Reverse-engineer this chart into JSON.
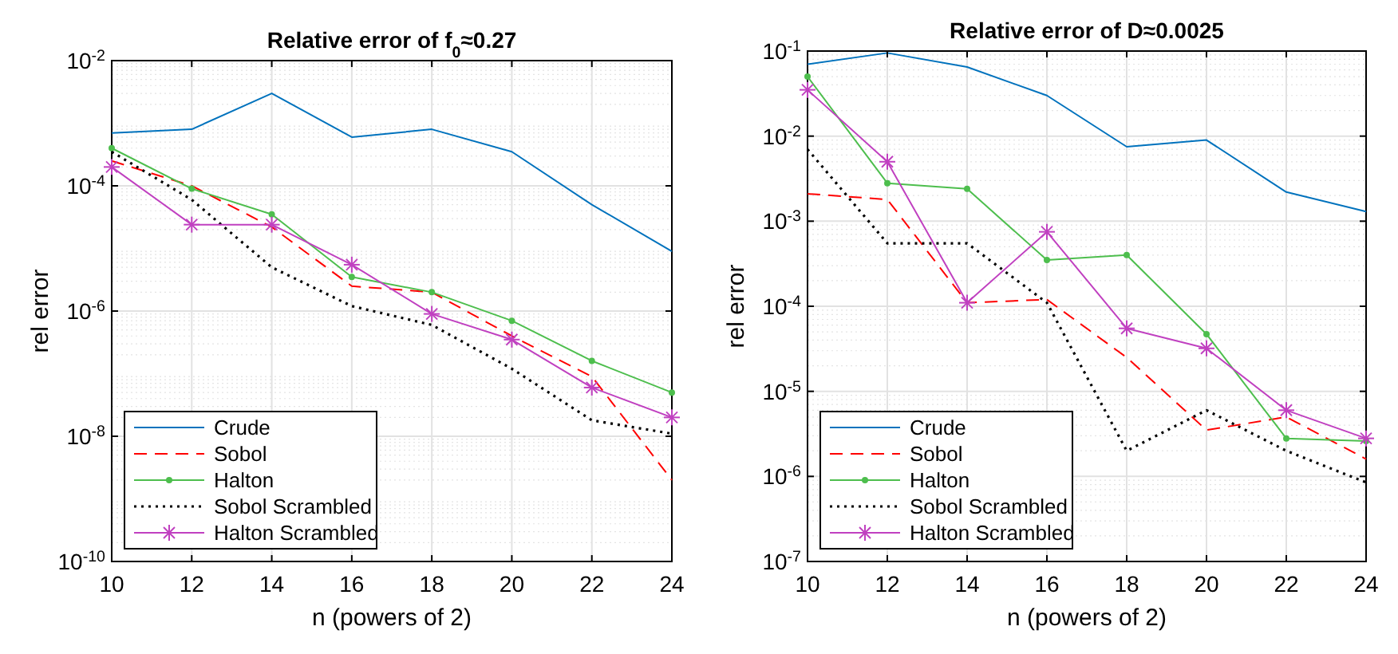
{
  "chart_data": [
    {
      "type": "line",
      "title": "Relative error of f$_{0}$≈0.27",
      "xlabel": "n (powers of 2)",
      "ylabel": "rel error",
      "log": "y",
      "grid": true,
      "legend": "bottom left",
      "x": [
        10,
        12,
        14,
        16,
        18,
        20,
        22,
        24
      ],
      "xlim": [
        10,
        24
      ],
      "xticks": [
        10,
        12,
        14,
        16,
        18,
        20,
        22,
        24
      ],
      "ylim": [
        1e-10,
        0.01
      ],
      "yticks": [
        {
          "value": 1e-10,
          "label": "10$^{-10}$"
        },
        {
          "value": 1e-08,
          "label": "10$^{-8}$"
        },
        {
          "value": 1e-06,
          "label": "10$^{-6}$"
        },
        {
          "value": 0.0001,
          "label": "10$^{-4}$"
        },
        {
          "value": 0.01,
          "label": "10$^{-2}$"
        }
      ],
      "series": [
        {
          "name": "Crude",
          "color": "#0072bd",
          "line_style": "solid",
          "marker": "none",
          "values": [
            0.0007,
            0.0008,
            0.003,
            0.0006,
            0.0008,
            0.00035,
            5e-05,
            9e-06
          ]
        },
        {
          "name": "Sobol",
          "color": "#ff0000",
          "line_style": "dashed",
          "marker": "none",
          "values": [
            0.00025,
            0.0001,
            2.2e-05,
            2.5e-06,
            2e-06,
            4e-07,
            9e-08,
            2e-09
          ]
        },
        {
          "name": "Halton",
          "color": "#4dbe4d",
          "line_style": "solid",
          "marker": "circle",
          "values": [
            0.0004,
            9e-05,
            3.5e-05,
            3.5e-06,
            2e-06,
            7e-07,
            1.6e-07,
            5e-08
          ]
        },
        {
          "name": "Sobol Scrambled",
          "color": "#000000",
          "line_style": "dotted",
          "marker": "none",
          "values": [
            0.00035,
            6e-05,
            5e-06,
            1.2e-06,
            6e-07,
            1.2e-07,
            1.8e-08,
            1.1e-08
          ]
        },
        {
          "name": "Halton Scrambled",
          "color": "#c040c0",
          "line_style": "solid",
          "marker": "cross",
          "values": [
            0.0002,
            2.4e-05,
            2.4e-05,
            5.5e-06,
            9e-07,
            3.5e-07,
            6e-08,
            2e-08
          ]
        }
      ]
    },
    {
      "type": "line",
      "title": "Relative error of D≈0.0025",
      "xlabel": "n (powers of 2)",
      "ylabel": "rel error",
      "log": "y",
      "grid": true,
      "legend": "bottom left",
      "x": [
        10,
        12,
        14,
        16,
        18,
        20,
        22,
        24
      ],
      "xlim": [
        10,
        24
      ],
      "xticks": [
        10,
        12,
        14,
        16,
        18,
        20,
        22,
        24
      ],
      "ylim": [
        1e-07,
        0.1
      ],
      "yticks": [
        {
          "value": 1e-07,
          "label": "10$^{-7}$"
        },
        {
          "value": 1e-06,
          "label": "10$^{-6}$"
        },
        {
          "value": 1e-05,
          "label": "10$^{-5}$"
        },
        {
          "value": 0.0001,
          "label": "10$^{-4}$"
        },
        {
          "value": 0.001,
          "label": "10$^{-3}$"
        },
        {
          "value": 0.01,
          "label": "10$^{-2}$"
        },
        {
          "value": 0.1,
          "label": "10$^{-1}$"
        }
      ],
      "series": [
        {
          "name": "Crude",
          "color": "#0072bd",
          "line_style": "solid",
          "marker": "none",
          "values": [
            0.07,
            0.095,
            0.065,
            0.03,
            0.0075,
            0.009,
            0.0022,
            0.0013
          ]
        },
        {
          "name": "Sobol",
          "color": "#ff0000",
          "line_style": "dashed",
          "marker": "none",
          "values": [
            0.0021,
            0.0018,
            0.00011,
            0.00012,
            2.5e-05,
            3.5e-06,
            5e-06,
            1.6e-06
          ]
        },
        {
          "name": "Halton",
          "color": "#4dbe4d",
          "line_style": "solid",
          "marker": "circle",
          "values": [
            0.05,
            0.0028,
            0.0024,
            0.00035,
            0.0004,
            4.7e-05,
            2.8e-06,
            2.6e-06
          ]
        },
        {
          "name": "Sobol Scrambled",
          "color": "#000000",
          "line_style": "dotted",
          "marker": "none",
          "values": [
            0.007,
            0.00055,
            0.00055,
            0.00011,
            2e-06,
            6e-06,
            2e-06,
            8.5e-07
          ]
        },
        {
          "name": "Halton Scrambled",
          "color": "#c040c0",
          "line_style": "solid",
          "marker": "cross",
          "values": [
            0.035,
            0.005,
            0.00011,
            0.00075,
            5.5e-05,
            3.2e-05,
            6e-06,
            2.8e-06
          ]
        }
      ]
    }
  ]
}
